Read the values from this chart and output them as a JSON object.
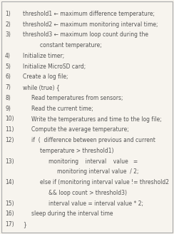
{
  "background_color": "#f7f4ee",
  "border_color": "#aaaaaa",
  "text_color": "#555555",
  "num_color": "#555555",
  "font_size": 5.5,
  "figsize": [
    2.44,
    3.28
  ],
  "dpi": 100,
  "lines": [
    {
      "num": "1)",
      "indent": 0,
      "text": "threshold1 ← maximum difference temperature;"
    },
    {
      "num": "2)",
      "indent": 0,
      "text": "threshold2 ← maximum monitoring interval time;"
    },
    {
      "num": "3)",
      "indent": 0,
      "text": "threshold3 ← maximum loop count during the"
    },
    {
      "num": "",
      "indent": 2,
      "text": "constant temperature;"
    },
    {
      "num": "4)",
      "indent": 0,
      "text": "Initialize timer;"
    },
    {
      "num": "5)",
      "indent": 0,
      "text": "Initialize MicroSD card;"
    },
    {
      "num": "6)",
      "indent": 0,
      "text": "Create a log file;"
    },
    {
      "num": "7)",
      "indent": 0,
      "text": "while (true) {"
    },
    {
      "num": "8)",
      "indent": 1,
      "text": "Read temperatures from sensors;"
    },
    {
      "num": "9)",
      "indent": 1,
      "text": "Read the current time;"
    },
    {
      "num": "10)",
      "indent": 1,
      "text": "Write the temperatures and time to the log file;"
    },
    {
      "num": "11)",
      "indent": 1,
      "text": "Compute the average temperature;"
    },
    {
      "num": "12)",
      "indent": 1,
      "text": "if  (  difference between previous and current"
    },
    {
      "num": "",
      "indent": 2,
      "text": "temperature > threshold1)"
    },
    {
      "num": "13)",
      "indent": 3,
      "text": "monitoring    interval    value   ="
    },
    {
      "num": "",
      "indent": 4,
      "text": "monitoring interval value  / 2;"
    },
    {
      "num": "14)",
      "indent": 2,
      "text": "else if (monitoring interval value != threshold2"
    },
    {
      "num": "",
      "indent": 3,
      "text": "&& loop count > threshold3)"
    },
    {
      "num": "15)",
      "indent": 3,
      "text": "interval value = interval value * 2;"
    },
    {
      "num": "16)",
      "indent": 1,
      "text": "sleep during the interval time"
    },
    {
      "num": "17)",
      "indent": 0,
      "text": "}"
    }
  ]
}
